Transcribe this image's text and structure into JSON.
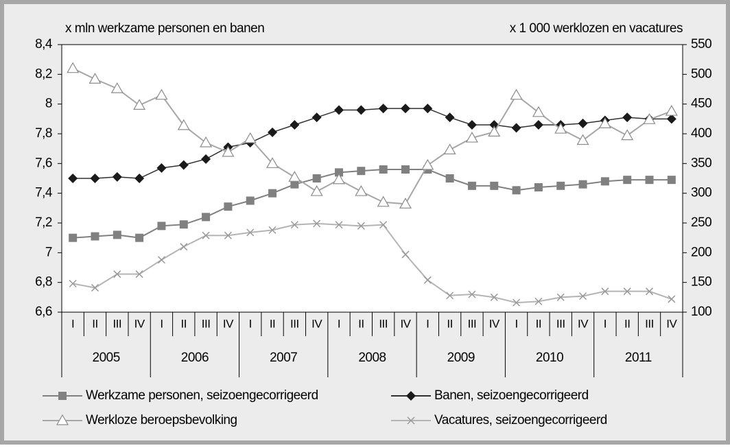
{
  "chart_data": {
    "type": "line",
    "y_title": "x mln werkzame personen en banen",
    "y2_title": "x 1 000 werklozen en vacatures",
    "categories": [
      "I",
      "II",
      "III",
      "IV",
      "I",
      "II",
      "III",
      "IV",
      "I",
      "II",
      "III",
      "IV",
      "I",
      "II",
      "III",
      "IV",
      "I",
      "II",
      "III",
      "IV",
      "I",
      "II",
      "III",
      "IV",
      "I",
      "II",
      "III",
      "IV"
    ],
    "groups": [
      "2005",
      "2006",
      "2007",
      "2008",
      "2009",
      "2010",
      "2011"
    ],
    "ylim": [
      6.6,
      8.4
    ],
    "yticks": [
      {
        "value": 6.6,
        "label": "6,6"
      },
      {
        "value": 6.8,
        "label": "6,8"
      },
      7,
      {
        "value": 7.2,
        "label": "7,2"
      },
      {
        "value": 7.4,
        "label": "7,4"
      },
      {
        "value": 7.6,
        "label": "7,6"
      },
      {
        "value": 7.8,
        "label": "7,8"
      },
      8,
      {
        "value": 8.2,
        "label": "8,2"
      },
      {
        "value": 8.4,
        "label": "8,4"
      }
    ],
    "y2lim": [
      100,
      550
    ],
    "y2ticks": [
      100,
      150,
      200,
      250,
      300,
      350,
      400,
      450,
      500,
      550
    ],
    "series": [
      {
        "name": "Werkzame personen, seizoengecorrigeerd",
        "color": "#808080",
        "marker": "square",
        "values": [
          7.1,
          7.11,
          7.12,
          7.1,
          7.18,
          7.19,
          7.24,
          7.31,
          7.35,
          7.4,
          7.46,
          7.5,
          7.54,
          7.55,
          7.56,
          7.56,
          7.56,
          7.5,
          7.45,
          7.45,
          7.42,
          7.44,
          7.45,
          7.46,
          7.48,
          7.49,
          7.49,
          7.49
        ]
      },
      {
        "name": "Banen, seizoengecorrigeerd",
        "color": "#303030",
        "marker": "diamond",
        "values": [
          7.5,
          7.5,
          7.51,
          7.5,
          7.57,
          7.59,
          7.63,
          7.71,
          7.74,
          7.81,
          7.86,
          7.91,
          7.96,
          7.96,
          7.97,
          7.97,
          7.97,
          7.91,
          7.86,
          7.86,
          7.84,
          7.86,
          7.86,
          7.87,
          7.89,
          7.91,
          7.9,
          7.9
        ]
      },
      {
        "name": "Werkloze beroepsbevolking",
        "color": "#a6a6a6",
        "marker": "triangle",
        "axis": "y2",
        "values": [
          510,
          492,
          476,
          448,
          465,
          414,
          385,
          369,
          392,
          350,
          327,
          303,
          323,
          303,
          285,
          282,
          347,
          373,
          393,
          403,
          465,
          436,
          408,
          389,
          417,
          397,
          424,
          438
        ]
      },
      {
        "name": "Vacatures, seizoengecorrigeerd",
        "color": "#b4b4b4",
        "marker": "cross",
        "axis": "y2",
        "values": [
          148,
          141,
          164,
          164,
          188,
          210,
          229,
          229,
          234,
          238,
          247,
          249,
          247,
          245,
          247,
          197,
          154,
          128,
          130,
          125,
          116,
          118,
          125,
          127,
          135,
          135,
          135,
          122
        ]
      }
    ]
  }
}
